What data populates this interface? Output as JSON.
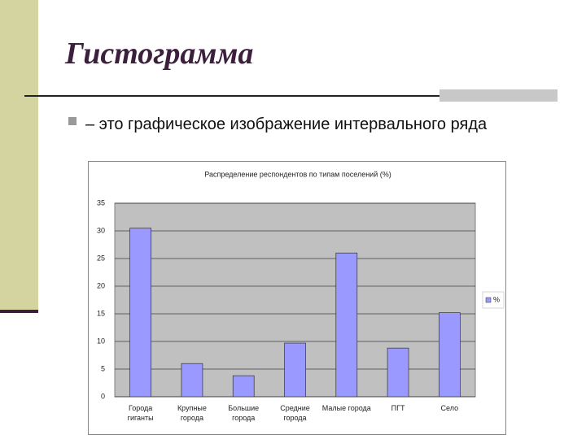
{
  "slide": {
    "title": "Гистограмма",
    "bullet": "– это графическое изображение интервального ряда"
  },
  "chart_data": {
    "type": "bar",
    "title": "Распределение респондентов по типам поселений (%)",
    "categories": [
      "Города гиганты",
      "Крупные города",
      "Большие города",
      "Средние города",
      "Малые города",
      "ПГТ",
      "Село"
    ],
    "series": [
      {
        "name": "%",
        "color": "#9999ff",
        "values": [
          30.5,
          6,
          3.8,
          9.7,
          26,
          8.8,
          15.2
        ]
      }
    ],
    "ylim": [
      0,
      35
    ],
    "yticks": [
      0,
      5,
      10,
      15,
      20,
      25,
      30,
      35
    ],
    "grid": true,
    "legend": "right"
  }
}
